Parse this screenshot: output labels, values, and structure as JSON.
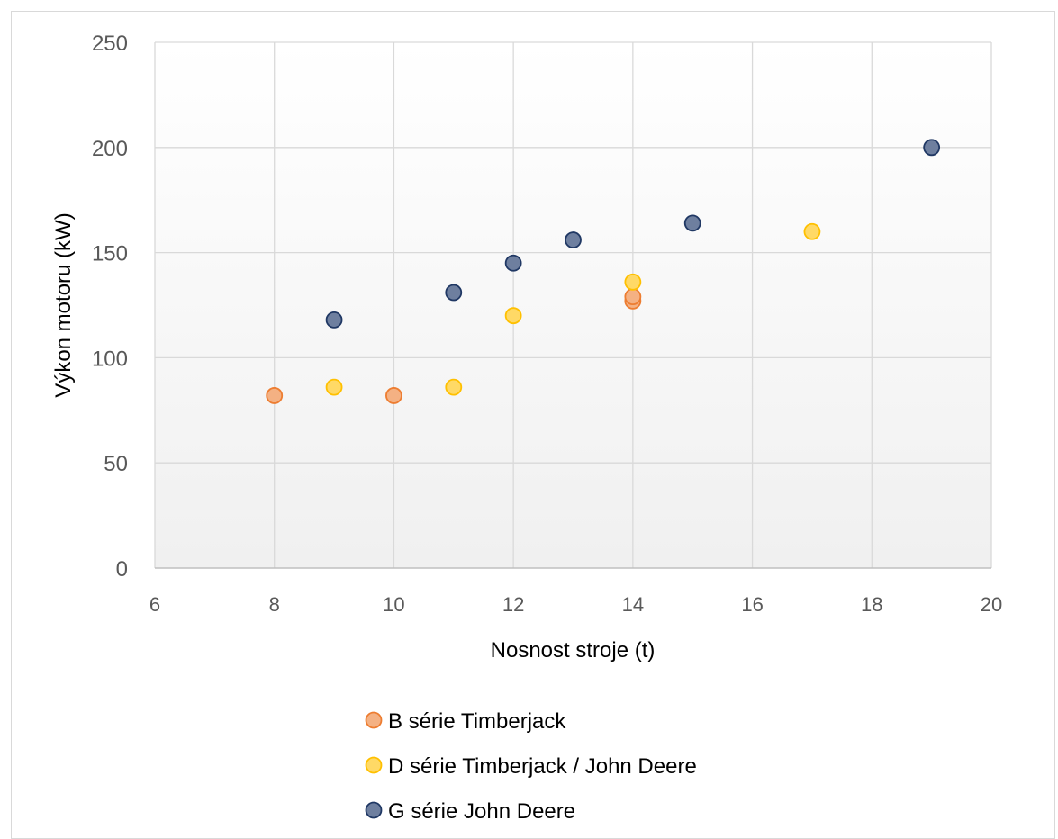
{
  "chart_data": {
    "type": "scatter",
    "title": "",
    "xlabel": "Nosnost stroje (t)",
    "ylabel": "Výkon motoru (kW)",
    "xlim": [
      6,
      20
    ],
    "ylim": [
      0,
      250
    ],
    "x_ticks": [
      "6",
      "8",
      "10",
      "12",
      "14",
      "16",
      "18",
      "20"
    ],
    "y_ticks": [
      "0",
      "50",
      "100",
      "150",
      "200",
      "250"
    ],
    "grid": true,
    "legend_position": "bottom",
    "series": [
      {
        "name": "B série Timberjack",
        "fill": "#f4b183",
        "stroke": "#ed7d31",
        "points": [
          [
            8,
            82
          ],
          [
            10,
            82
          ],
          [
            14,
            127
          ],
          [
            14,
            129
          ]
        ]
      },
      {
        "name": "D série Timberjack / John Deere",
        "fill": "#ffd966",
        "stroke": "#ffc000",
        "points": [
          [
            9,
            86
          ],
          [
            11,
            86
          ],
          [
            12,
            120
          ],
          [
            14,
            136
          ],
          [
            17,
            160
          ]
        ]
      },
      {
        "name": "G série John Deere",
        "fill": "#6e7f9f",
        "stroke": "#203864",
        "points": [
          [
            9,
            118
          ],
          [
            11,
            131
          ],
          [
            12,
            145
          ],
          [
            13,
            156
          ],
          [
            15,
            164
          ],
          [
            19,
            200
          ]
        ]
      }
    ]
  }
}
